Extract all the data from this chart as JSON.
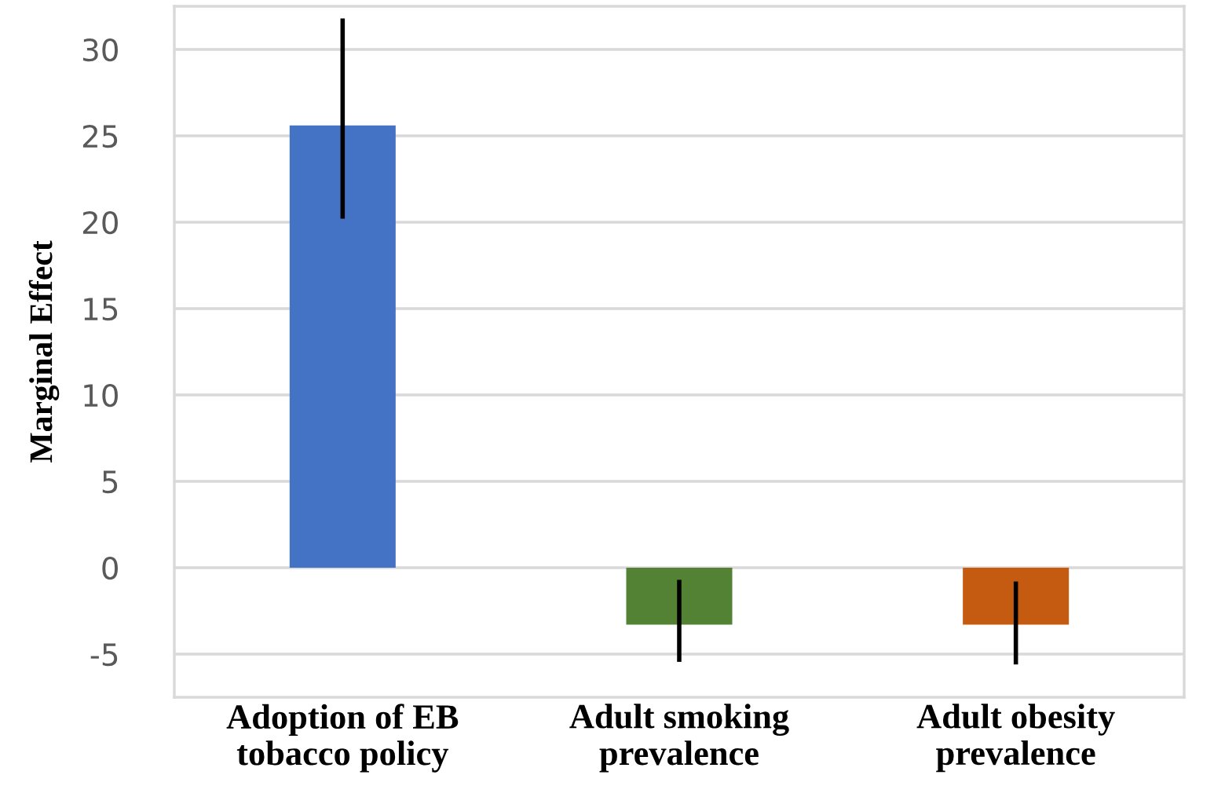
{
  "chart_data": {
    "type": "bar",
    "ylabel": "Marginal Effect",
    "categories": [
      "Adoption of EB\ntobacco policy",
      "Adult smoking\nprevalence",
      "Adult obesity\nprevalence"
    ],
    "values": [
      25.6,
      -3.3,
      -3.3
    ],
    "colors": [
      "#4472c4",
      "#548235",
      "#c55a11"
    ],
    "errors": [
      [
        20.2,
        31.8
      ],
      [
        -5.45,
        -0.7
      ],
      [
        -5.6,
        -0.8
      ]
    ],
    "ylim": [
      -7.5,
      32.5
    ],
    "yticks": [
      -5,
      0,
      5,
      10,
      15,
      20,
      25,
      30
    ],
    "grid": "y",
    "legend": false
  }
}
